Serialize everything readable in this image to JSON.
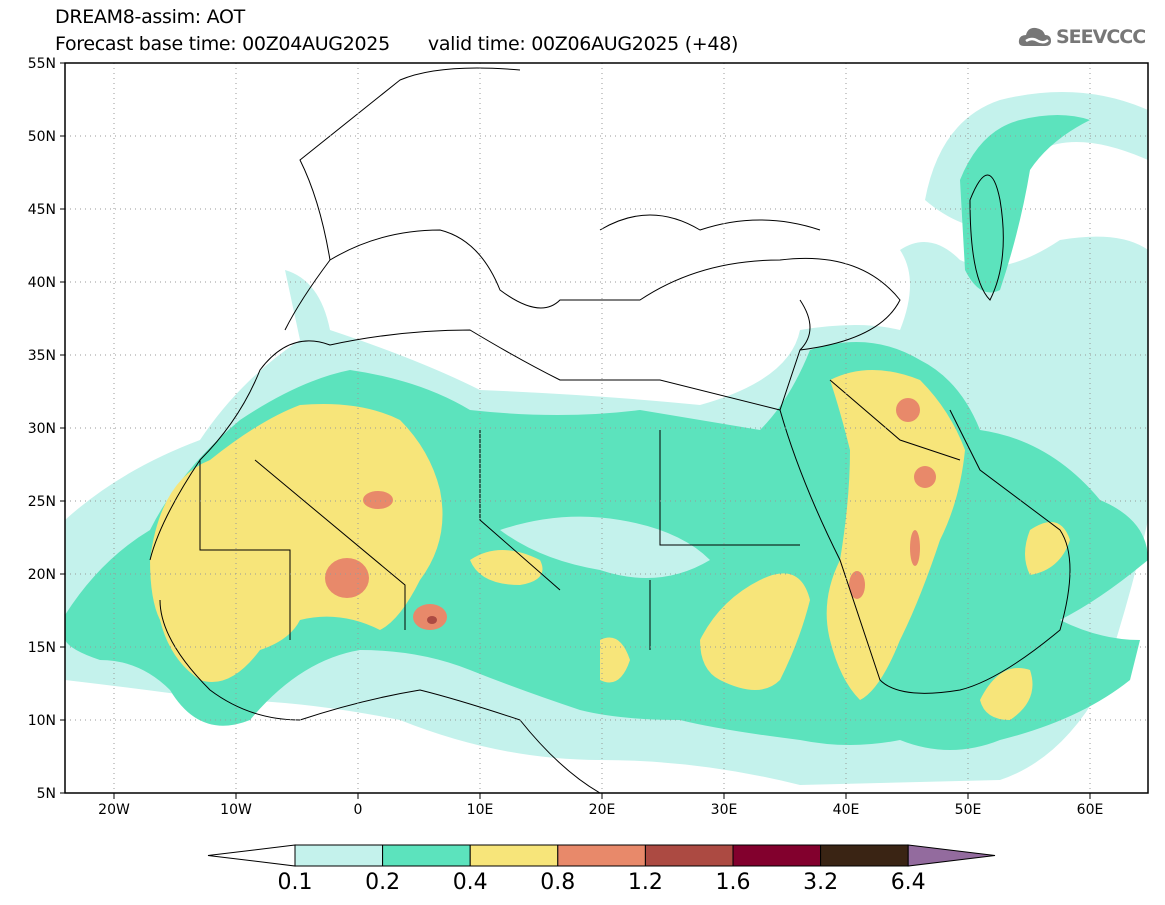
{
  "title": "DREAM8-assim: AOT",
  "base_time": "Forecast base time: 00Z04AUG2025",
  "valid_time": "valid time: 00Z06AUG2025 (+48)",
  "logo": "SEEVCCC",
  "lat_labels": [
    "55N",
    "50N",
    "45N",
    "40N",
    "35N",
    "30N",
    "25N",
    "20N",
    "15N",
    "10N",
    "5N"
  ],
  "lon_labels": [
    "20W",
    "10W",
    "0",
    "10E",
    "20E",
    "30E",
    "40E",
    "50E",
    "60E"
  ],
  "colorbar": {
    "labels": [
      "0.1",
      "0.2",
      "0.4",
      "0.8",
      "1.2",
      "1.6",
      "3.2",
      "6.4"
    ],
    "colors": [
      "#ffffff",
      "#c4f2ec",
      "#5ce3bd",
      "#f7e57a",
      "#e8896a",
      "#ac4a42",
      "#82002d",
      "#3a2414",
      "#936b9e"
    ]
  }
}
